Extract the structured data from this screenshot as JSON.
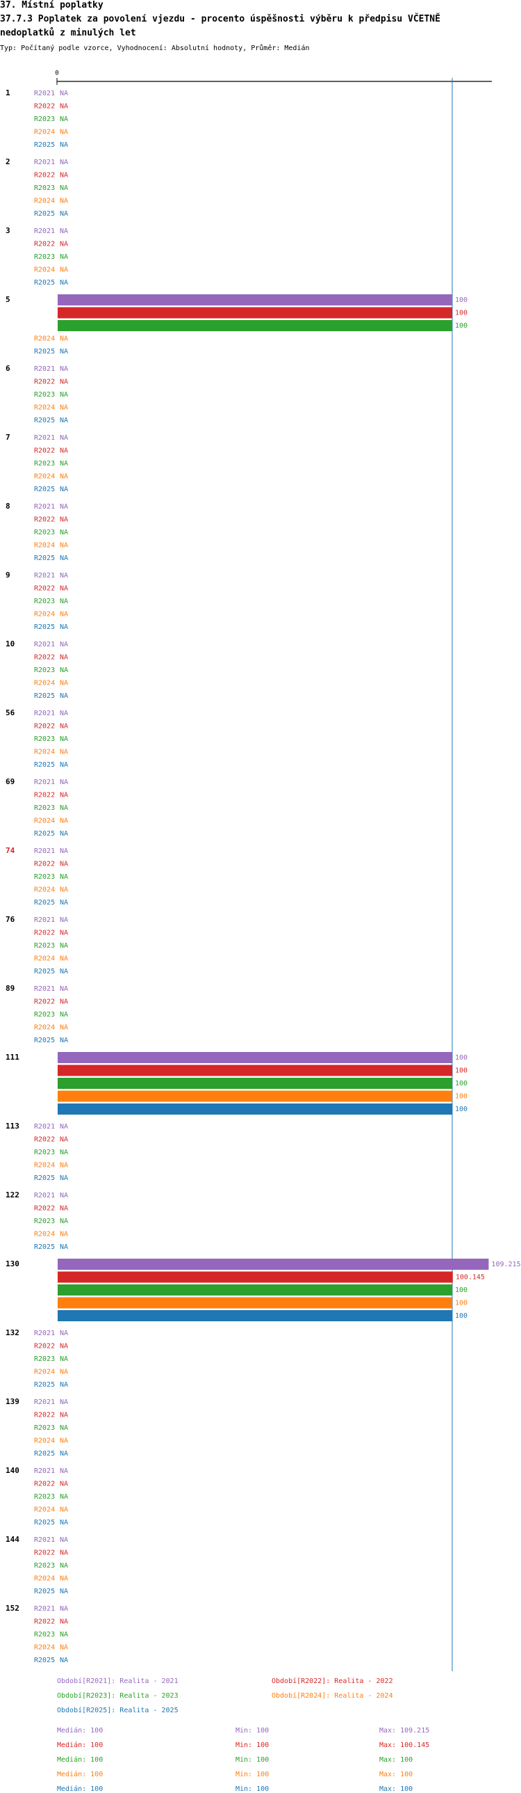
{
  "header": {
    "line1": "37. Místní poplatky",
    "line2": "37.7.3 Poplatek za povolení vjezdu - procento úspěšnosti výběru k předpisu VČETNĚ",
    "line3": " nedoplatků z minulých let",
    "line4": "Typ: Počítaný podle vzorce, Vyhodnocení: Absolutní hodnoty, Průměr: Medián"
  },
  "colors": {
    "R2021": "#9467bd",
    "R2022": "#d62728",
    "R2023": "#2ca02c",
    "R2024": "#ff7f0e",
    "R2025": "#1f77b4",
    "highlight_label": "#d62728",
    "axis": "#000000",
    "reference_line": "#1f77b4"
  },
  "chart_data": {
    "type": "bar",
    "orientation": "horizontal",
    "x_tick_labels": [
      "0"
    ],
    "xlim": [
      0,
      110
    ],
    "reference_value": 100,
    "na_label": "NA",
    "series_names": [
      "R2021",
      "R2022",
      "R2023",
      "R2024",
      "R2025"
    ],
    "categories": [
      {
        "label": "1",
        "values": [
          null,
          null,
          null,
          null,
          null
        ]
      },
      {
        "label": "2",
        "values": [
          null,
          null,
          null,
          null,
          null
        ]
      },
      {
        "label": "3",
        "values": [
          null,
          null,
          null,
          null,
          null
        ]
      },
      {
        "label": "5",
        "values": [
          100,
          100,
          100,
          null,
          null
        ]
      },
      {
        "label": "6",
        "values": [
          null,
          null,
          null,
          null,
          null
        ]
      },
      {
        "label": "7",
        "values": [
          null,
          null,
          null,
          null,
          null
        ]
      },
      {
        "label": "8",
        "values": [
          null,
          null,
          null,
          null,
          null
        ]
      },
      {
        "label": "9",
        "values": [
          null,
          null,
          null,
          null,
          null
        ]
      },
      {
        "label": "10",
        "values": [
          null,
          null,
          null,
          null,
          null
        ]
      },
      {
        "label": "56",
        "values": [
          null,
          null,
          null,
          null,
          null
        ]
      },
      {
        "label": "69",
        "values": [
          null,
          null,
          null,
          null,
          null
        ]
      },
      {
        "label": "74",
        "values": [
          null,
          null,
          null,
          null,
          null
        ],
        "highlight": true
      },
      {
        "label": "76",
        "values": [
          null,
          null,
          null,
          null,
          null
        ]
      },
      {
        "label": "89",
        "values": [
          null,
          null,
          null,
          null,
          null
        ]
      },
      {
        "label": "111",
        "values": [
          100,
          100,
          100,
          100,
          100
        ]
      },
      {
        "label": "113",
        "values": [
          null,
          null,
          null,
          null,
          null
        ]
      },
      {
        "label": "122",
        "values": [
          null,
          null,
          null,
          null,
          null
        ]
      },
      {
        "label": "130",
        "values": [
          109.215,
          100.145,
          100,
          100,
          100
        ]
      },
      {
        "label": "132",
        "values": [
          null,
          null,
          null,
          null,
          null
        ]
      },
      {
        "label": "139",
        "values": [
          null,
          null,
          null,
          null,
          null
        ]
      },
      {
        "label": "140",
        "values": [
          null,
          null,
          null,
          null,
          null
        ]
      },
      {
        "label": "144",
        "values": [
          null,
          null,
          null,
          null,
          null
        ]
      },
      {
        "label": "152",
        "values": [
          null,
          null,
          null,
          null,
          null
        ]
      }
    ]
  },
  "legend": {
    "entries": [
      {
        "key": "R2021",
        "text": "Období[R2021]: Realita - 2021"
      },
      {
        "key": "R2022",
        "text": "Období[R2022]: Realita - 2022"
      },
      {
        "key": "R2023",
        "text": "Období[R2023]: Realita - 2023"
      },
      {
        "key": "R2024",
        "text": "Období[R2024]: Realita - 2024"
      },
      {
        "key": "R2025",
        "text": "Období[R2025]: Realita - 2025"
      }
    ],
    "stats": [
      {
        "key": "R2021",
        "median": "Medián: 100",
        "min": "Min: 100",
        "max": "Max: 109.215"
      },
      {
        "key": "R2022",
        "median": "Medián: 100",
        "min": "Min: 100",
        "max": "Max: 100.145"
      },
      {
        "key": "R2023",
        "median": "Medián: 100",
        "min": "Min: 100",
        "max": "Max: 100"
      },
      {
        "key": "R2024",
        "median": "Medián: 100",
        "min": "Min: 100",
        "max": "Max: 100"
      },
      {
        "key": "R2025",
        "median": "Medián: 100",
        "min": "Min: 100",
        "max": "Max: 100"
      }
    ]
  }
}
